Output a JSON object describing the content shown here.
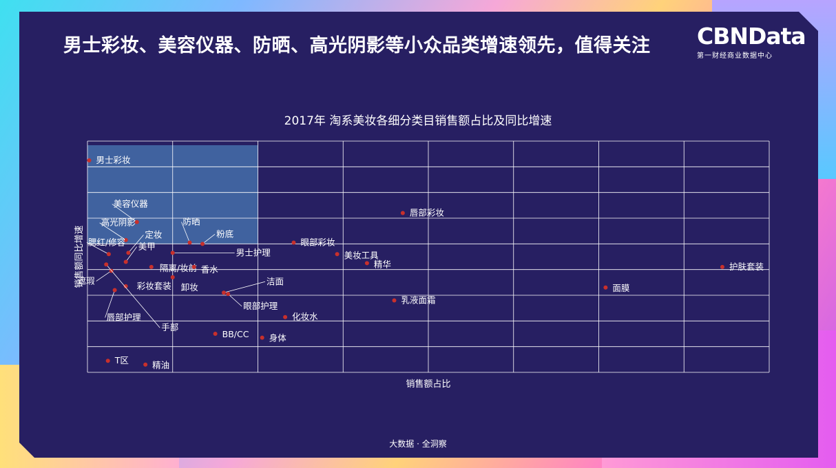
{
  "headline": "男士彩妆、美容仪器、防晒、高光阴影等小众品类增速领先，值得关注",
  "logo": {
    "main": "CBNData",
    "sub": "第一财经商业数据中心"
  },
  "footer": "大数据 · 全洞察",
  "colors": {
    "background": "#271f62",
    "point": "#c8302c",
    "highlight": "#4a7ab4",
    "grid": "#ffffff",
    "text": "#ffffff"
  },
  "chart_data": {
    "type": "scatter",
    "title": "2017年 淘系美妆各细分类目销售额占比及同比增速",
    "xlabel": "销售额占比",
    "ylabel": "销售额同比增速",
    "xlim": [
      0,
      8
    ],
    "ylim": [
      0,
      9
    ],
    "grid": true,
    "tick_labels": false,
    "highlight_region": {
      "x": [
        0,
        2
      ],
      "y": [
        5,
        9
      ]
    },
    "points": [
      {
        "label": "男士彩妆",
        "x": 0.02,
        "y": 8.25
      },
      {
        "label": "美容仪器",
        "x": 0.58,
        "y": 5.85
      },
      {
        "label": "高光阴影",
        "x": 0.45,
        "y": 5.15
      },
      {
        "label": "定妆",
        "x": 0.48,
        "y": 4.65
      },
      {
        "label": "腮红/修容",
        "x": 0.25,
        "y": 4.6
      },
      {
        "label": "美甲",
        "x": 0.45,
        "y": 4.3
      },
      {
        "label": "防晒",
        "x": 1.2,
        "y": 5.05
      },
      {
        "label": "粉底",
        "x": 1.35,
        "y": 5.0
      },
      {
        "label": "男士护理",
        "x": 1.0,
        "y": 4.65
      },
      {
        "label": "隔离/妆前",
        "x": 0.75,
        "y": 4.1
      },
      {
        "label": "香水",
        "x": 1.25,
        "y": 4.1
      },
      {
        "label": "遮瑕",
        "x": 0.28,
        "y": 3.95
      },
      {
        "label": "卸妆",
        "x": 1.0,
        "y": 3.7
      },
      {
        "label": "彩妆套装",
        "x": 0.45,
        "y": 3.35
      },
      {
        "label": "唇部护理",
        "x": 0.32,
        "y": 3.2
      },
      {
        "label": "手部",
        "x": 0.22,
        "y": 4.2
      },
      {
        "label": "洁面",
        "x": 1.6,
        "y": 3.1
      },
      {
        "label": "眼部护理",
        "x": 1.65,
        "y": 3.05
      },
      {
        "label": "眼部彩妆",
        "x": 2.42,
        "y": 5.05
      },
      {
        "label": "唇部彩妆",
        "x": 3.7,
        "y": 6.2
      },
      {
        "label": "美妆工具",
        "x": 2.93,
        "y": 4.6
      },
      {
        "label": "精华",
        "x": 3.28,
        "y": 4.25
      },
      {
        "label": "乳液面霜",
        "x": 3.6,
        "y": 2.8
      },
      {
        "label": "化妆水",
        "x": 2.32,
        "y": 2.15
      },
      {
        "label": "BB/CC",
        "x": 1.5,
        "y": 1.5
      },
      {
        "label": "身体",
        "x": 2.05,
        "y": 1.35
      },
      {
        "label": "面膜",
        "x": 6.08,
        "y": 3.3
      },
      {
        "label": "护肤套装",
        "x": 7.45,
        "y": 4.1
      },
      {
        "label": "T区",
        "x": 0.24,
        "y": 0.45
      },
      {
        "label": "精油",
        "x": 0.68,
        "y": 0.3
      }
    ]
  }
}
